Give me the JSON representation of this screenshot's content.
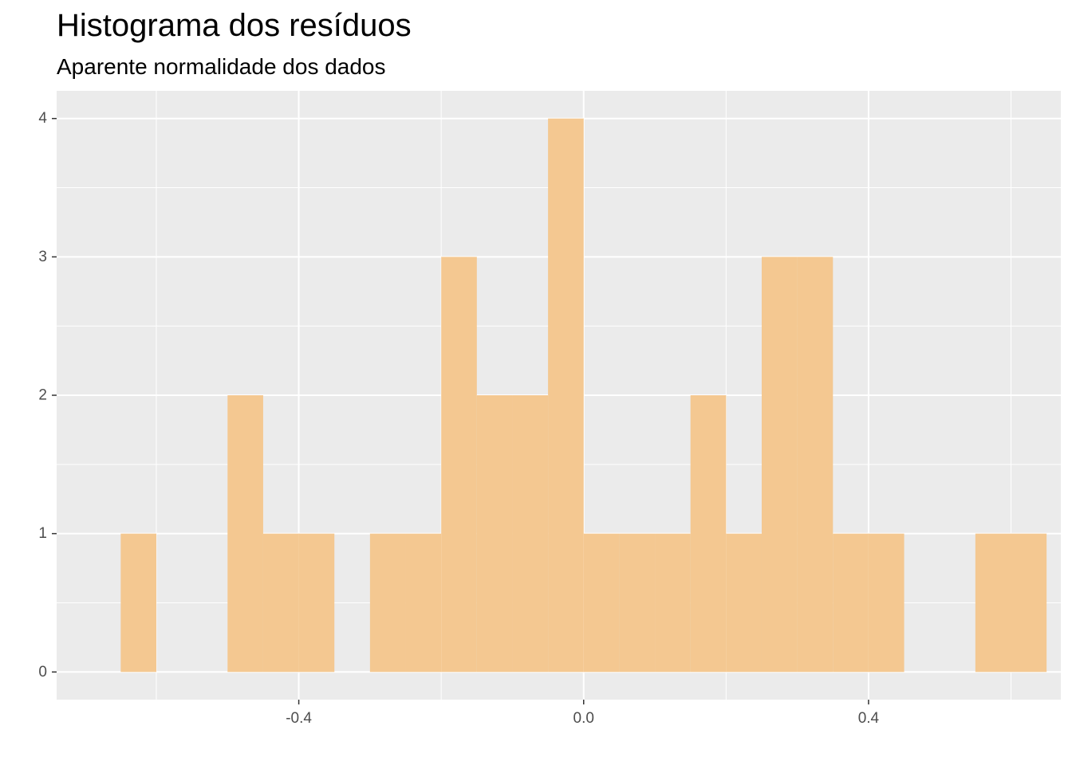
{
  "chart_data": {
    "type": "bar",
    "title": "Histograma dos resíduos",
    "subtitle": "Aparente normalidade dos dados",
    "xlabel": "",
    "ylabel": "",
    "bin_width": 0.05,
    "bins": [
      {
        "x0": -0.65,
        "x1": -0.6,
        "count": 1
      },
      {
        "x0": -0.6,
        "x1": -0.55,
        "count": 0
      },
      {
        "x0": -0.55,
        "x1": -0.5,
        "count": 0
      },
      {
        "x0": -0.5,
        "x1": -0.45,
        "count": 2
      },
      {
        "x0": -0.45,
        "x1": -0.4,
        "count": 1
      },
      {
        "x0": -0.4,
        "x1": -0.35,
        "count": 1
      },
      {
        "x0": -0.35,
        "x1": -0.3,
        "count": 0
      },
      {
        "x0": -0.3,
        "x1": -0.25,
        "count": 1
      },
      {
        "x0": -0.25,
        "x1": -0.2,
        "count": 1
      },
      {
        "x0": -0.2,
        "x1": -0.15,
        "count": 3
      },
      {
        "x0": -0.15,
        "x1": -0.1,
        "count": 2
      },
      {
        "x0": -0.1,
        "x1": -0.05,
        "count": 2
      },
      {
        "x0": -0.05,
        "x1": 0.0,
        "count": 4
      },
      {
        "x0": 0.0,
        "x1": 0.05,
        "count": 1
      },
      {
        "x0": 0.05,
        "x1": 0.1,
        "count": 1
      },
      {
        "x0": 0.1,
        "x1": 0.15,
        "count": 1
      },
      {
        "x0": 0.15,
        "x1": 0.2,
        "count": 2
      },
      {
        "x0": 0.2,
        "x1": 0.25,
        "count": 1
      },
      {
        "x0": 0.25,
        "x1": 0.3,
        "count": 3
      },
      {
        "x0": 0.3,
        "x1": 0.35,
        "count": 3
      },
      {
        "x0": 0.35,
        "x1": 0.4,
        "count": 1
      },
      {
        "x0": 0.4,
        "x1": 0.45,
        "count": 1
      },
      {
        "x0": 0.45,
        "x1": 0.5,
        "count": 0
      },
      {
        "x0": 0.5,
        "x1": 0.55,
        "count": 0
      },
      {
        "x0": 0.55,
        "x1": 0.6,
        "count": 1
      },
      {
        "x0": 0.6,
        "x1": 0.65,
        "count": 1
      }
    ],
    "xlim": [
      -0.74,
      0.67
    ],
    "ylim": [
      -0.2,
      4.2
    ],
    "x_ticks": [
      -0.4,
      0.0,
      0.4
    ],
    "x_tick_labels": [
      "-0.4",
      "0.0",
      "0.4"
    ],
    "x_minor_ticks": [
      -0.6,
      -0.2,
      0.2,
      0.6
    ],
    "y_ticks": [
      0,
      1,
      2,
      3,
      4
    ],
    "y_tick_labels": [
      "0",
      "1",
      "2",
      "3",
      "4"
    ],
    "y_minor_ticks": [
      0.5,
      1.5,
      2.5,
      3.5
    ],
    "grid": true,
    "legend": "none",
    "colors": {
      "bar_fill": "#F4C68C",
      "panel_background": "#EBEBEB",
      "grid_line": "#FFFFFF",
      "tick_label": "#4D4D4D"
    }
  }
}
